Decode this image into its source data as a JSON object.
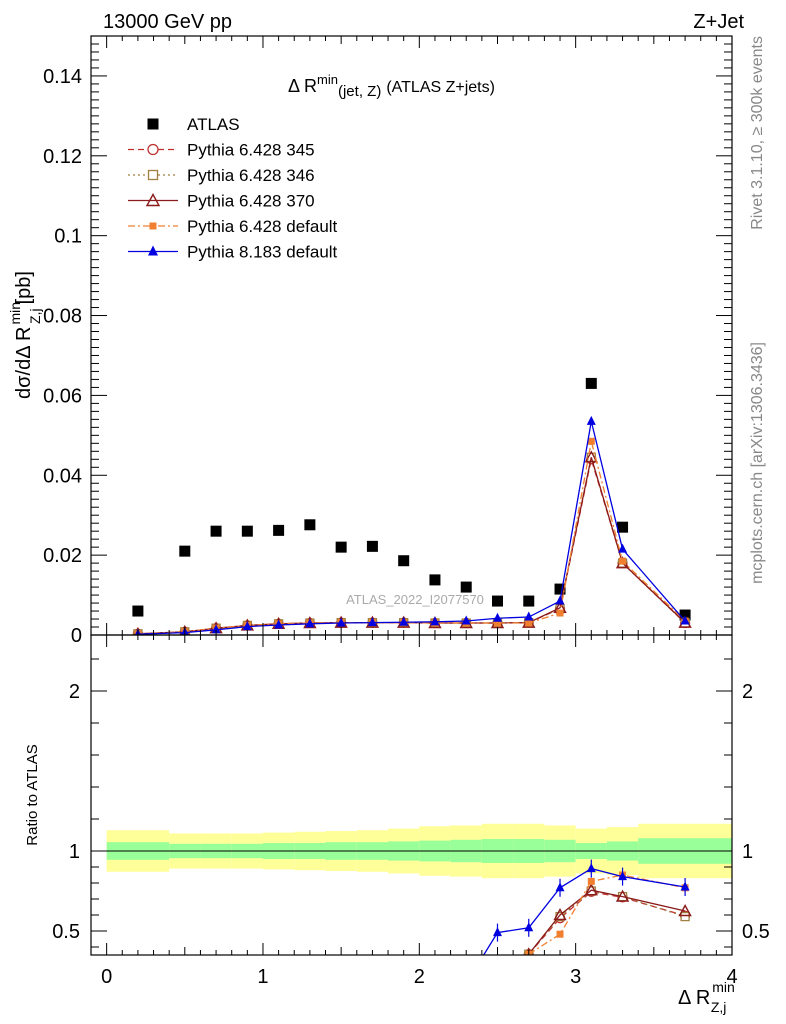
{
  "header": {
    "left": "13000 GeV pp",
    "right": "Z+Jet"
  },
  "side_labels": {
    "rivet": "Rivet 3.1.10, ≥ 300k events",
    "mcplots": "mcplots.cern.ch [arXiv:1306.3436]"
  },
  "chart_data": {
    "type": "scatter",
    "title_prefix": "Δ R",
    "title_sup": "min",
    "title_sub": "(jet, Z)",
    "title_suffix": "(ATLAS Z+jets)",
    "watermark": "ATLAS_2022_I2077570",
    "main_ylabel": "dσ/dΔ R",
    "main_ylabel_sup": "min",
    "main_ylabel_sub": "Z,j",
    "main_ylabel_unit": "[pb]",
    "ratio_ylabel": "Ratio to ATLAS",
    "xlabel": "Δ R",
    "xlabel_sup": "min",
    "xlabel_sub": "Z,j",
    "xlim": [
      -0.1,
      4.0
    ],
    "main_ylim": [
      0,
      0.15
    ],
    "ratio_ylim": [
      0.35,
      2.35
    ],
    "x_ticks": [
      "0",
      "1",
      "2",
      "3",
      "4"
    ],
    "main_y_ticks": [
      "0",
      "0.02",
      "0.04",
      "0.06",
      "0.08",
      "0.1",
      "0.12",
      "0.14"
    ],
    "ratio_y_ticks": [
      "0.5",
      "1",
      "2"
    ],
    "x": [
      0.2,
      0.5,
      0.7,
      0.9,
      1.1,
      1.3,
      1.5,
      1.7,
      1.9,
      2.1,
      2.3,
      2.5,
      2.7,
      2.9,
      3.1,
      3.3,
      3.7
    ],
    "bin_edges": [
      0.0,
      0.4,
      0.6,
      0.8,
      1.0,
      1.2,
      1.4,
      1.6,
      1.8,
      2.0,
      2.2,
      2.4,
      2.6,
      2.8,
      3.0,
      3.2,
      3.4,
      4.0
    ],
    "band_stat": [
      0.055,
      0.045,
      0.045,
      0.045,
      0.05,
      0.05,
      0.055,
      0.055,
      0.06,
      0.065,
      0.07,
      0.075,
      0.075,
      0.07,
      0.05,
      0.06,
      0.08
    ],
    "band_total": [
      0.13,
      0.11,
      0.11,
      0.11,
      0.115,
      0.12,
      0.125,
      0.13,
      0.14,
      0.155,
      0.16,
      0.17,
      0.17,
      0.16,
      0.14,
      0.15,
      0.17
    ],
    "series": [
      {
        "name": "ATLAS",
        "color": "#000000",
        "marker": "square-filled",
        "line": "none",
        "values": [
          0.006,
          0.021,
          0.026,
          0.026,
          0.0262,
          0.0276,
          0.022,
          0.0222,
          0.0186,
          0.0138,
          0.012,
          0.0085,
          0.0085,
          0.0115,
          0.063,
          0.027,
          0.005
        ]
      },
      {
        "name": "Pythia 6.428 345",
        "color": "#c03030",
        "marker": "circle-open",
        "line": "dashed",
        "values": [
          0.0003,
          0.0008,
          0.0017,
          0.0024,
          0.0028,
          0.003,
          0.0031,
          0.0031,
          0.0031,
          0.003,
          0.003,
          0.003,
          0.0031,
          0.0066,
          0.044,
          0.018,
          0.003
        ],
        "ratio": [
          null,
          null,
          null,
          null,
          null,
          null,
          null,
          null,
          null,
          null,
          null,
          null,
          0.355,
          0.58,
          0.745,
          0.71,
          0.595
        ]
      },
      {
        "name": "Pythia 6.428 346",
        "color": "#a08040",
        "marker": "square-open",
        "line": "dotted",
        "values": [
          0.0003,
          0.0008,
          0.0017,
          0.0024,
          0.0028,
          0.003,
          0.0031,
          0.0031,
          0.0031,
          0.003,
          0.003,
          0.003,
          0.0031,
          0.0066,
          0.0445,
          0.018,
          0.003
        ],
        "ratio": [
          null,
          null,
          null,
          null,
          null,
          null,
          null,
          null,
          null,
          null,
          null,
          null,
          0.355,
          0.59,
          0.75,
          0.715,
          0.59
        ]
      },
      {
        "name": "Pythia 6.428 370",
        "color": "#8b1a1a",
        "marker": "triangle-open",
        "line": "solid",
        "values": [
          0.0003,
          0.0008,
          0.0017,
          0.0024,
          0.0028,
          0.003,
          0.0031,
          0.0031,
          0.0031,
          0.003,
          0.003,
          0.003,
          0.0031,
          0.0068,
          0.0445,
          0.018,
          0.0031
        ],
        "ratio": [
          null,
          null,
          null,
          null,
          null,
          null,
          null,
          null,
          null,
          null,
          null,
          null,
          0.355,
          0.6,
          0.755,
          0.715,
          0.625
        ]
      },
      {
        "name": "Pythia 6.428 default",
        "color": "#f08030",
        "marker": "square-filled",
        "line": "dashdot",
        "values": [
          0.0003,
          0.0008,
          0.0017,
          0.0024,
          0.0028,
          0.003,
          0.0031,
          0.0031,
          0.0031,
          0.003,
          0.003,
          0.003,
          0.003,
          0.0055,
          0.0485,
          0.0185,
          0.0035
        ],
        "ratio": [
          null,
          null,
          null,
          null,
          null,
          null,
          null,
          null,
          null,
          null,
          null,
          null,
          0.355,
          0.48,
          0.81,
          0.85,
          0.77
        ]
      },
      {
        "name": "Pythia 8.183 default",
        "color": "#0000e0",
        "marker": "triangle-filled",
        "line": "solid",
        "values": [
          0.0002,
          0.0006,
          0.0013,
          0.0021,
          0.0025,
          0.0028,
          0.003,
          0.0031,
          0.0032,
          0.0033,
          0.0035,
          0.0042,
          0.0045,
          0.0085,
          0.0535,
          0.0215,
          0.0035
        ],
        "ratio": [
          null,
          null,
          null,
          null,
          null,
          null,
          null,
          null,
          null,
          null,
          null,
          0.49,
          0.52,
          0.77,
          0.89,
          0.84,
          0.775
        ]
      }
    ]
  }
}
